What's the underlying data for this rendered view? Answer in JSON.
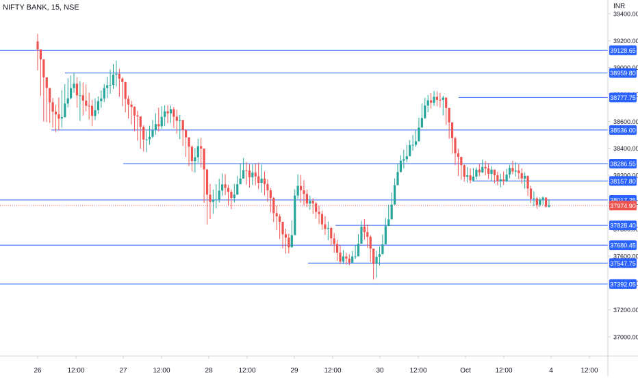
{
  "header": {
    "symbol": "NIFTY BANK, 15, NSE",
    "currency": "INR"
  },
  "colors": {
    "up": "#26a69a",
    "down": "#ef5350",
    "level_line": "#2962ff",
    "last_price": "#ef5350",
    "axis_text": "#131722",
    "axis_line": "#d1d4dc"
  },
  "chart_data": {
    "type": "candlestick",
    "title": "NIFTY BANK, 15, NSE",
    "ylabel": "",
    "xlabel": "",
    "ylim": [
      36900,
      39500
    ],
    "grid": false,
    "y_ticks": [
      "39400.00",
      "39200.00",
      "39000.00",
      "38800.00",
      "38600.00",
      "38400.00",
      "38200.00",
      "38000.00",
      "37800.00",
      "37600.00",
      "37400.00",
      "37200.00",
      "37000.00"
    ],
    "x_ticks": [
      "26",
      "12:00",
      "27",
      "12:00",
      "28",
      "12:00",
      "29",
      "12:00",
      "30",
      "12:00",
      "Oct",
      "12:00",
      "4",
      "12:00"
    ],
    "levels": [
      {
        "label": "39128.65",
        "value": 39128.65
      },
      {
        "label": "38959.80",
        "value": 38959.8
      },
      {
        "label": "38777.75",
        "value": 38777.75
      },
      {
        "label": "38536.00",
        "value": 38536.0
      },
      {
        "label": "38286.55",
        "value": 38286.55
      },
      {
        "label": "38157.80",
        "value": 38157.8
      },
      {
        "label": "38017.25",
        "value": 38017.25
      },
      {
        "label": "37828.40",
        "value": 37828.4
      },
      {
        "label": "37680.45",
        "value": 37680.45
      },
      {
        "label": "37547.75",
        "value": 37547.75
      },
      {
        "label": "37392.05",
        "value": 37392.05
      }
    ],
    "last_price": {
      "label": "37974.90",
      "value": 37974.9
    },
    "candle_anchors": [
      [
        39120,
        39250,
        38980
      ],
      [
        38960,
        39000,
        38600
      ],
      [
        38740,
        38830,
        38590
      ],
      [
        38620,
        38720,
        38520
      ],
      [
        38650,
        38830,
        38550
      ],
      [
        38780,
        38920,
        38700
      ],
      [
        38870,
        38960,
        38820
      ],
      [
        38790,
        38900,
        38600
      ],
      [
        38720,
        38880,
        38680
      ],
      [
        38660,
        38760,
        38560
      ],
      [
        38730,
        38780,
        38650
      ],
      [
        38820,
        38870,
        38740
      ],
      [
        38900,
        38980,
        38800
      ],
      [
        38960,
        39060,
        38870
      ],
      [
        38880,
        38940,
        38720
      ],
      [
        38740,
        38800,
        38630
      ],
      [
        38660,
        38720,
        38540
      ],
      [
        38580,
        38650,
        38400
      ],
      [
        38440,
        38520,
        38360
      ],
      [
        38520,
        38600,
        38470
      ],
      [
        38590,
        38700,
        38520
      ],
      [
        38660,
        38720,
        38560
      ],
      [
        38670,
        38720,
        38600
      ],
      [
        38640,
        38700,
        38520
      ],
      [
        38560,
        38620,
        38440
      ],
      [
        38420,
        38500,
        38280
      ],
      [
        38300,
        38380,
        38200
      ],
      [
        38460,
        38520,
        38340
      ],
      [
        38100,
        38250,
        37820
      ],
      [
        37980,
        38080,
        37900
      ],
      [
        38050,
        38160,
        37980
      ],
      [
        38170,
        38240,
        38080
      ],
      [
        38010,
        38080,
        37930
      ],
      [
        38080,
        38160,
        38030
      ],
      [
        38260,
        38340,
        38200
      ],
      [
        38190,
        38280,
        38100
      ],
      [
        38210,
        38280,
        38140
      ],
      [
        38160,
        38300,
        38080
      ],
      [
        38120,
        38200,
        38040
      ],
      [
        37980,
        38070,
        37880
      ],
      [
        37860,
        37940,
        37760
      ],
      [
        37740,
        37820,
        37620
      ],
      [
        37660,
        37750,
        37620
      ],
      [
        38140,
        38210,
        38040
      ],
      [
        38070,
        38200,
        37980
      ],
      [
        38010,
        38060,
        37960
      ],
      [
        37960,
        38020,
        37900
      ],
      [
        37880,
        37960,
        37820
      ],
      [
        37800,
        37880,
        37740
      ],
      [
        37720,
        37800,
        37660
      ],
      [
        37600,
        37700,
        37540
      ],
      [
        37570,
        37630,
        37540
      ],
      [
        37560,
        37610,
        37530
      ],
      [
        37640,
        37700,
        37590
      ],
      [
        37820,
        37900,
        37760
      ],
      [
        37720,
        37820,
        37640
      ],
      [
        37540,
        37620,
        37380
      ],
      [
        37620,
        37680,
        37560
      ],
      [
        37850,
        37920,
        37780
      ],
      [
        38000,
        38100,
        37960
      ],
      [
        38280,
        38320,
        38200
      ],
      [
        38340,
        38400,
        38260
      ],
      [
        38400,
        38470,
        38360
      ],
      [
        38470,
        38550,
        38420
      ],
      [
        38680,
        38760,
        38580
      ],
      [
        38740,
        38800,
        38680
      ],
      [
        38780,
        38830,
        38720
      ],
      [
        38770,
        38810,
        38700
      ],
      [
        38700,
        38760,
        38560
      ],
      [
        38450,
        38560,
        38340
      ],
      [
        38300,
        38380,
        38180
      ],
      [
        38200,
        38270,
        38150
      ],
      [
        38180,
        38250,
        38140
      ],
      [
        38210,
        38260,
        38170
      ],
      [
        38270,
        38320,
        38220
      ],
      [
        38230,
        38290,
        38170
      ],
      [
        38190,
        38240,
        38140
      ],
      [
        38160,
        38210,
        38110
      ],
      [
        38200,
        38250,
        38150
      ],
      [
        38250,
        38310,
        38210
      ],
      [
        38220,
        38280,
        38170
      ],
      [
        38160,
        38220,
        38100
      ],
      [
        38040,
        38120,
        37990
      ],
      [
        38000,
        38040,
        37950
      ],
      [
        38010,
        38030,
        37980
      ],
      [
        37975,
        38020,
        37960
      ]
    ]
  }
}
